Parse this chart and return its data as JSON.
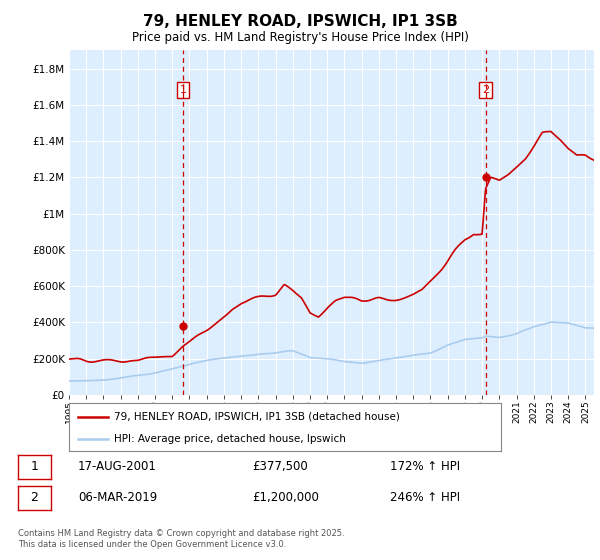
{
  "title": "79, HENLEY ROAD, IPSWICH, IP1 3SB",
  "subtitle": "Price paid vs. HM Land Registry's House Price Index (HPI)",
  "footnote": "Contains HM Land Registry data © Crown copyright and database right 2025.\nThis data is licensed under the Open Government Licence v3.0.",
  "legend_label_red": "79, HENLEY ROAD, IPSWICH, IP1 3SB (detached house)",
  "legend_label_blue": "HPI: Average price, detached house, Ipswich",
  "sale1_date": "17-AUG-2001",
  "sale1_price": "£377,500",
  "sale1_hpi": "172% ↑ HPI",
  "sale2_date": "06-MAR-2019",
  "sale2_price": "£1,200,000",
  "sale2_hpi": "246% ↑ HPI",
  "vline1_year": 2001.625,
  "vline2_year": 2019.2,
  "point1_x": 2001.625,
  "point1_y": 377500,
  "point2_x": 2019.2,
  "point2_y": 1200000,
  "ylim": [
    0,
    1900000
  ],
  "xlim": [
    1995.0,
    2025.5
  ],
  "yticks": [
    0,
    200000,
    400000,
    600000,
    800000,
    1000000,
    1200000,
    1400000,
    1600000,
    1800000
  ],
  "ytick_labels": [
    "£0",
    "£200K",
    "£400K",
    "£600K",
    "£800K",
    "£1M",
    "£1.2M",
    "£1.4M",
    "£1.6M",
    "£1.8M"
  ],
  "red_color": "#cc0000",
  "blue_color": "#aaccee",
  "vline_color": "#cc0000",
  "background_color": "#ffffff",
  "plot_bg_color": "#ddeeff",
  "grid_color": "#ffffff"
}
